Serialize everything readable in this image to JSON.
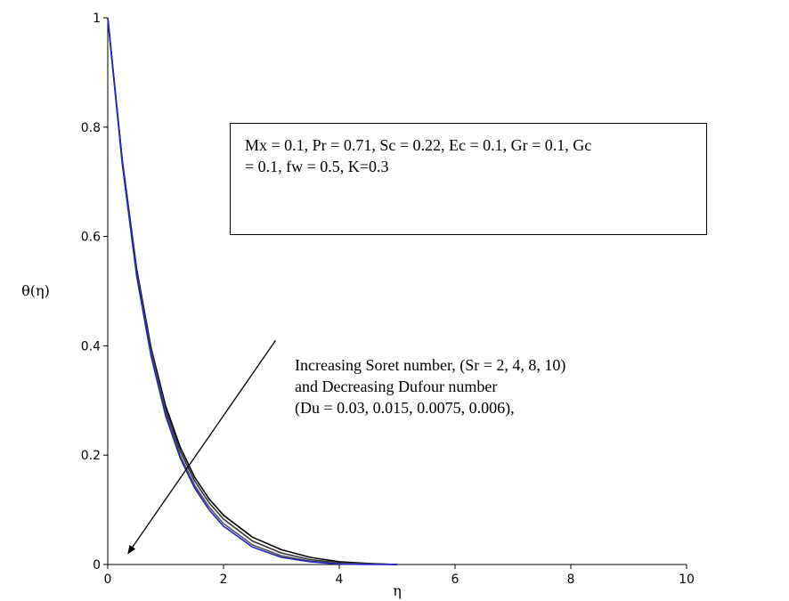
{
  "chart_data": {
    "type": "line",
    "title": "",
    "xlabel": "η",
    "ylabel": "θ(η)",
    "xlim": [
      0,
      10
    ],
    "ylim": [
      0,
      1
    ],
    "x_ticks": [
      "0",
      "2",
      "4",
      "6",
      "8",
      "10"
    ],
    "y_ticks": [
      "0",
      "0.2",
      "0.4",
      "0.6",
      "0.8",
      "1"
    ],
    "grid": false,
    "x": [
      0,
      0.25,
      0.5,
      0.75,
      1.0,
      1.25,
      1.5,
      1.75,
      2.0,
      2.5,
      3.0,
      3.5,
      4.0,
      4.5,
      5.0
    ],
    "series": [
      {
        "color": "#000000",
        "values": [
          1.0,
          0.74,
          0.54,
          0.395,
          0.29,
          0.215,
          0.16,
          0.12,
          0.09,
          0.05,
          0.027,
          0.013,
          0.005,
          0.002,
          0.0
        ]
      },
      {
        "color": "#333333",
        "values": [
          1.0,
          0.738,
          0.535,
          0.39,
          0.283,
          0.208,
          0.153,
          0.113,
          0.083,
          0.043,
          0.021,
          0.009,
          0.003,
          0.001,
          0.0
        ]
      },
      {
        "color": "#555555",
        "values": [
          1.0,
          0.735,
          0.53,
          0.385,
          0.277,
          0.2,
          0.145,
          0.105,
          0.075,
          0.036,
          0.016,
          0.006,
          0.002,
          0.001,
          0.0
        ]
      },
      {
        "color": "#2222cc",
        "values": [
          1.0,
          0.733,
          0.527,
          0.38,
          0.272,
          0.195,
          0.14,
          0.1,
          0.07,
          0.032,
          0.013,
          0.005,
          0.001,
          0.0,
          0.0
        ]
      }
    ],
    "info_box": [
      "Mx = 0.1, Pr = 0.71, Sc = 0.22, Ec = 0.1, Gr = 0.1, Gc",
      "= 0.1, fw = 0.5, K=0.3"
    ],
    "annotation": [
      "Increasing Soret number, (Sr = 2, 4, 8, 10)",
      "and Decreasing Dufour number",
      "(Du = 0.03, 0.015, 0.0075, 0.006),"
    ],
    "arrow": {
      "from": [
        2.9,
        0.41
      ],
      "to": [
        0.35,
        0.02
      ]
    }
  }
}
